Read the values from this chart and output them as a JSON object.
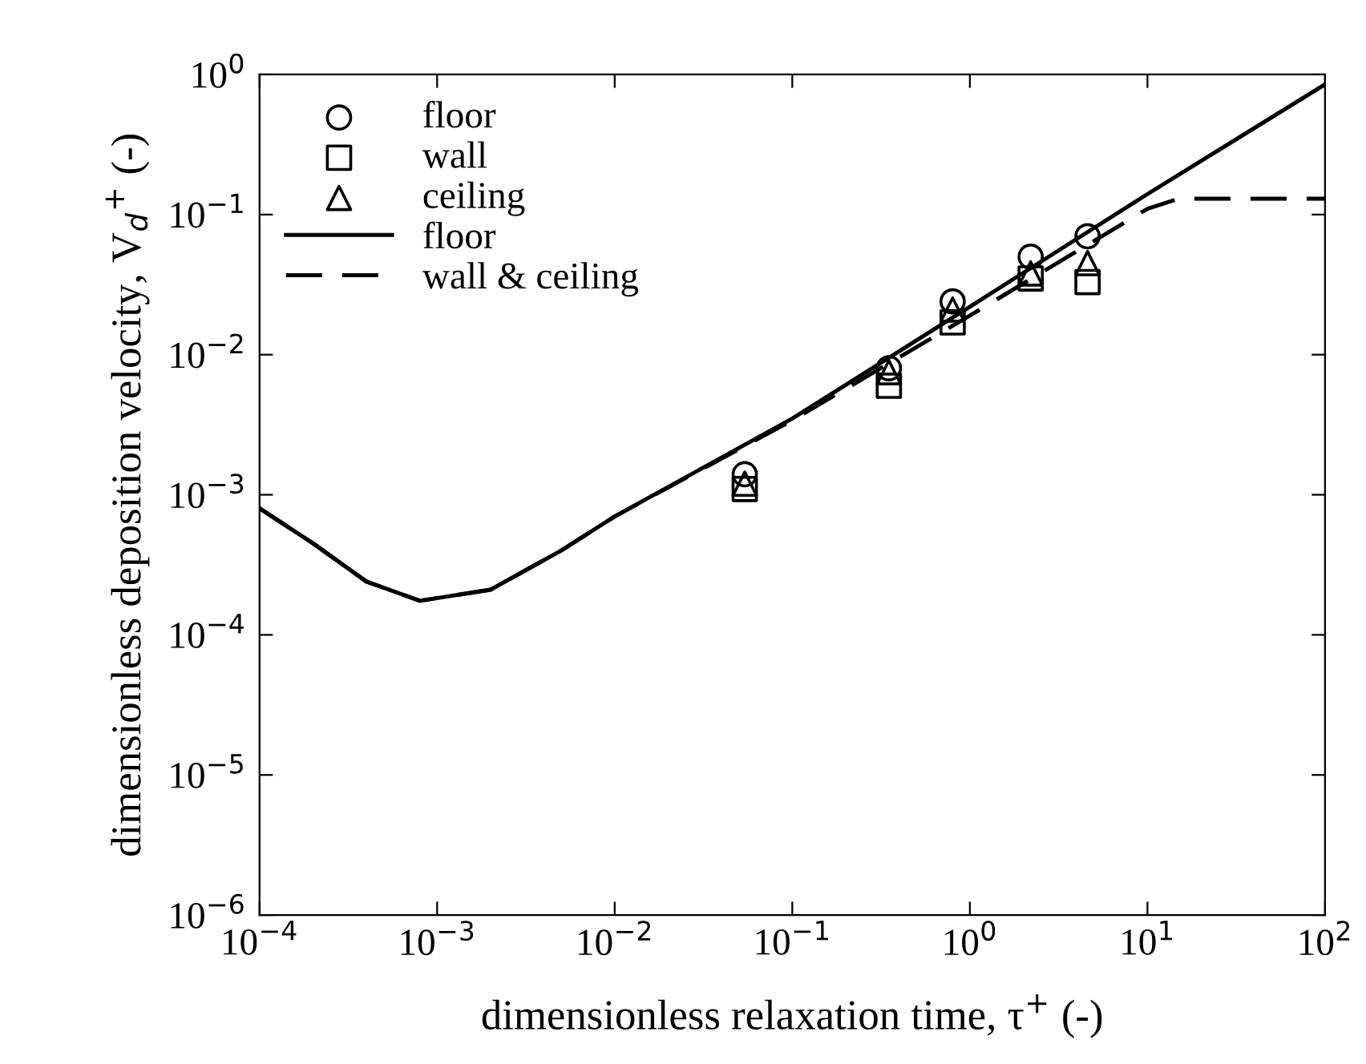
{
  "chart_data": {
    "type": "scatter",
    "xlabel": "dimensionless relaxation time, τ$^{+}$ (-)",
    "ylabel": "dimensionless deposition velocity, V$_{d}$$^{+}$ (-)",
    "log": "xy",
    "xlim": [
      0.0001,
      100
    ],
    "ylim": [
      1e-06,
      1
    ],
    "xticks": [
      {
        "value": 0.0001,
        "label": "10$^{−4}$"
      },
      {
        "value": 0.001,
        "label": "10$^{−3}$"
      },
      {
        "value": 0.01,
        "label": "10$^{−2}$"
      },
      {
        "value": 0.1,
        "label": "10$^{−1}$"
      },
      {
        "value": 1,
        "label": "10$^{0}$"
      },
      {
        "value": 10,
        "label": "10$^{1}$"
      },
      {
        "value": 100,
        "label": "10$^{2}$"
      }
    ],
    "yticks": [
      {
        "value": 1e-06,
        "label": "10$^{−6}$"
      },
      {
        "value": 1e-05,
        "label": "10$^{−5}$"
      },
      {
        "value": 0.0001,
        "label": "10$^{−4}$"
      },
      {
        "value": 0.001,
        "label": "10$^{−3}$"
      },
      {
        "value": 0.01,
        "label": "10$^{−2}$"
      },
      {
        "value": 0.1,
        "label": "10$^{−1}$"
      },
      {
        "value": 1,
        "label": "10$^{0}$"
      }
    ],
    "grid": false,
    "legend": "top left",
    "series": [
      {
        "name": "floor",
        "marker": "circle",
        "color": "#000000",
        "x": [
          0.054,
          0.35,
          0.8,
          2.2,
          4.6
        ],
        "values": [
          0.0014,
          0.008,
          0.024,
          0.05,
          0.07
        ]
      },
      {
        "name": "wall",
        "marker": "square",
        "color": "#000000",
        "x": [
          0.054,
          0.35,
          0.8,
          2.2,
          4.6
        ],
        "values": [
          0.0011,
          0.006,
          0.017,
          0.035,
          0.033
        ]
      },
      {
        "name": "ceiling",
        "marker": "triangle",
        "color": "#000000",
        "x": [
          0.054,
          0.35,
          0.8,
          2.2,
          4.6
        ],
        "values": [
          0.0012,
          0.0075,
          0.021,
          0.038,
          0.045
        ]
      },
      {
        "name": "floor",
        "type": "line",
        "line_style": "solid",
        "color": "#000000",
        "x": [
          0.0001,
          0.0002,
          0.0004,
          0.0008,
          0.002,
          0.005,
          0.01,
          0.1,
          1,
          10,
          100
        ],
        "values": [
          0.0008,
          0.00045,
          0.00024,
          0.000175,
          0.00021,
          0.0004,
          0.0007,
          0.0035,
          0.022,
          0.14,
          0.85
        ]
      },
      {
        "name": "wall & ceiling",
        "type": "line",
        "line_style": "dashed",
        "color": "#000000",
        "x": [
          0.0001,
          0.0002,
          0.0004,
          0.0008,
          0.002,
          0.005,
          0.01,
          0.1,
          1,
          10,
          15,
          100
        ],
        "values": [
          0.0008,
          0.00045,
          0.00024,
          0.000175,
          0.00021,
          0.0004,
          0.0007,
          0.0034,
          0.019,
          0.11,
          0.13,
          0.13
        ]
      }
    ]
  }
}
